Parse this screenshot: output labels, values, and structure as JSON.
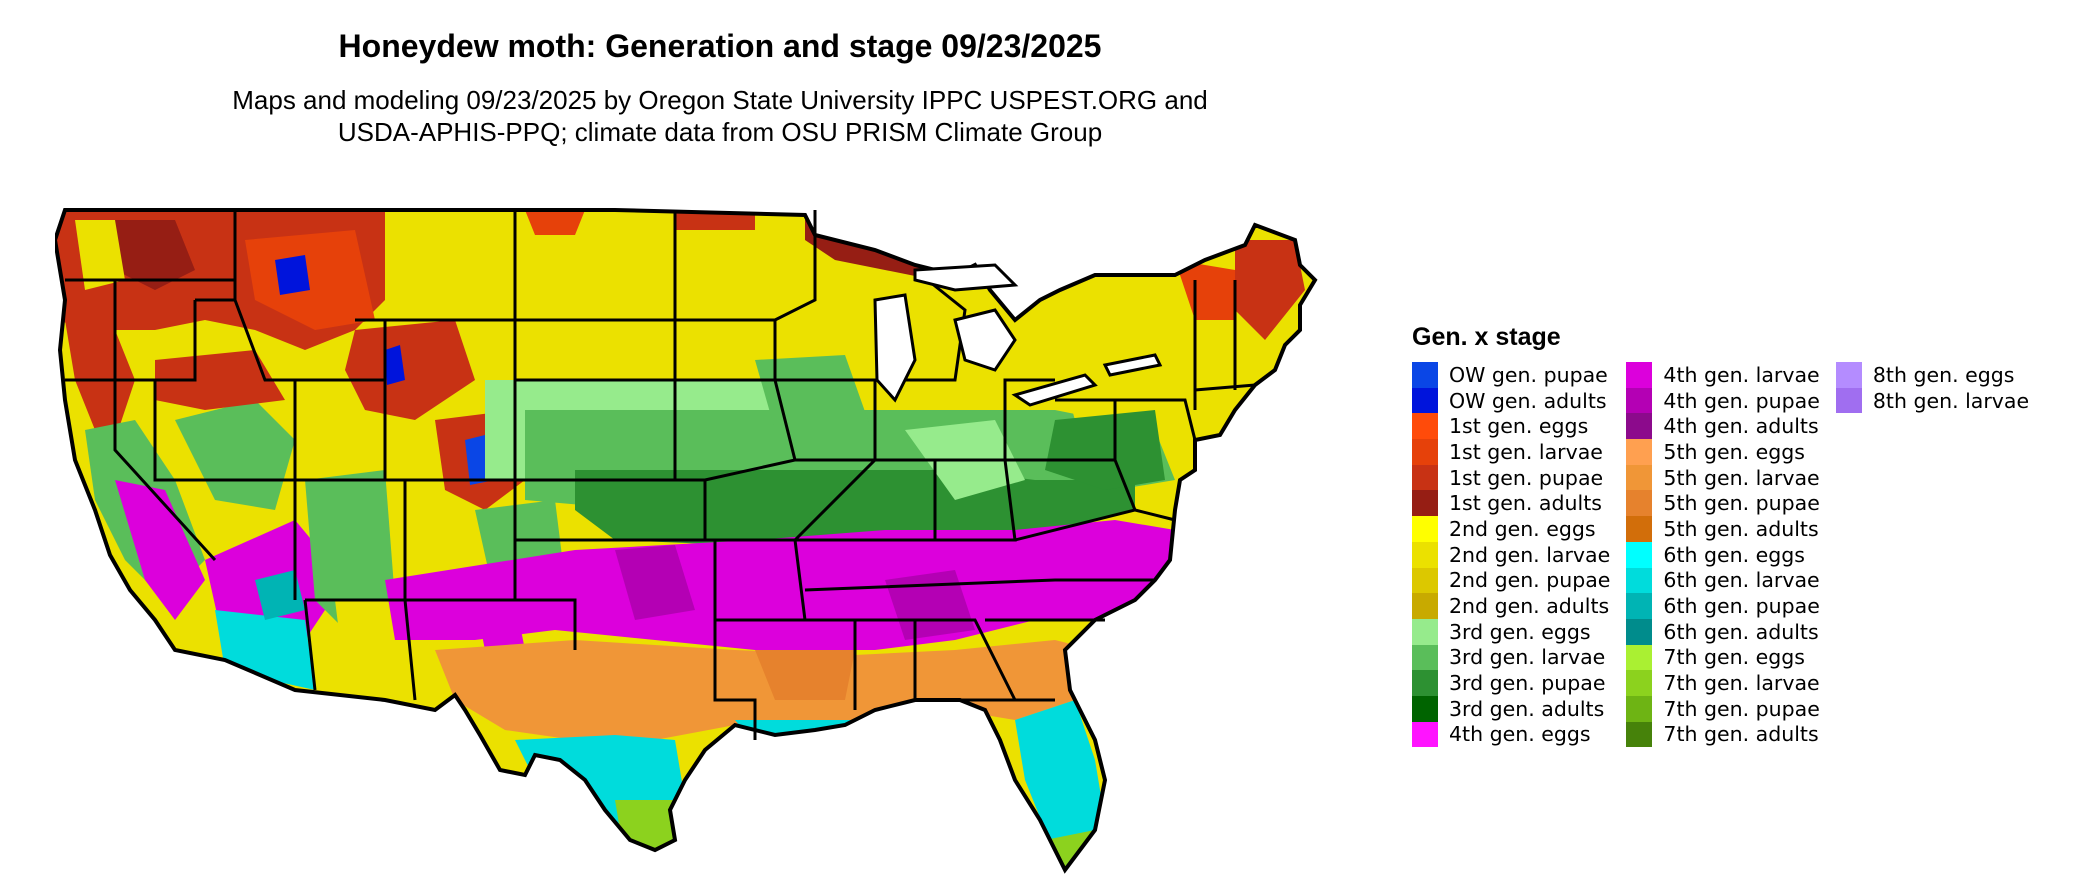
{
  "title": "Honeydew moth: Generation and stage 09/23/2025",
  "subtitle_lines": [
    "Maps and modeling 09/23/2025 by Oregon State University IPPC USPEST.ORG and",
    "USDA-APHIS-PPQ; climate data from OSU PRISM Climate Group"
  ],
  "legend": {
    "title": "Gen. x stage",
    "columns": [
      [
        {
          "label": "OW gen. pupae",
          "color": "#0a46e6"
        },
        {
          "label": "OW gen. adults",
          "color": "#0014dc"
        },
        {
          "label": "1st gen. eggs",
          "color": "#ff4b0a"
        },
        {
          "label": "1st gen. larvae",
          "color": "#e6410a"
        },
        {
          "label": "1st gen. pupae",
          "color": "#c83214"
        },
        {
          "label": "1st gen. adults",
          "color": "#961e14"
        },
        {
          "label": "2nd gen. eggs",
          "color": "#ffff00"
        },
        {
          "label": "2nd gen. larvae",
          "color": "#ebe100"
        },
        {
          "label": "2nd gen. pupae",
          "color": "#dcc800"
        },
        {
          "label": "2nd gen. adults",
          "color": "#c8aa00"
        },
        {
          "label": "3rd gen. eggs",
          "color": "#96eb8c"
        },
        {
          "label": "3rd gen. larvae",
          "color": "#5abe5a"
        },
        {
          "label": "3rd gen. pupae",
          "color": "#2d9132"
        },
        {
          "label": "3rd gen. adults",
          "color": "#006400"
        },
        {
          "label": "4th gen. eggs",
          "color": "#ff14ff"
        }
      ],
      [
        {
          "label": "4th gen. larvae",
          "color": "#dc00dc"
        },
        {
          "label": "4th gen. pupae",
          "color": "#b400b4"
        },
        {
          "label": "4th gen. adults",
          "color": "#8c0a8c"
        },
        {
          "label": "5th gen. eggs",
          "color": "#ffa050"
        },
        {
          "label": "5th gen. larvae",
          "color": "#f09637"
        },
        {
          "label": "5th gen. pupae",
          "color": "#e6822d"
        },
        {
          "label": "5th gen. adults",
          "color": "#d26e0a"
        },
        {
          "label": "6th gen. eggs",
          "color": "#00ffff"
        },
        {
          "label": "6th gen. larvae",
          "color": "#00dcdc"
        },
        {
          "label": "6th gen. pupae",
          "color": "#00b4b4"
        },
        {
          "label": "6th gen. adults",
          "color": "#008c8c"
        },
        {
          "label": "7th gen. eggs",
          "color": "#aaf032"
        },
        {
          "label": "7th gen. larvae",
          "color": "#8cd21e"
        },
        {
          "label": "7th gen. pupae",
          "color": "#6eb414"
        },
        {
          "label": "7th gen. adults",
          "color": "#46820a"
        }
      ],
      [
        {
          "label": "8th gen. eggs",
          "color": "#b48cff"
        },
        {
          "label": "8th gen. larvae",
          "color": "#a06ef0"
        }
      ]
    ]
  }
}
